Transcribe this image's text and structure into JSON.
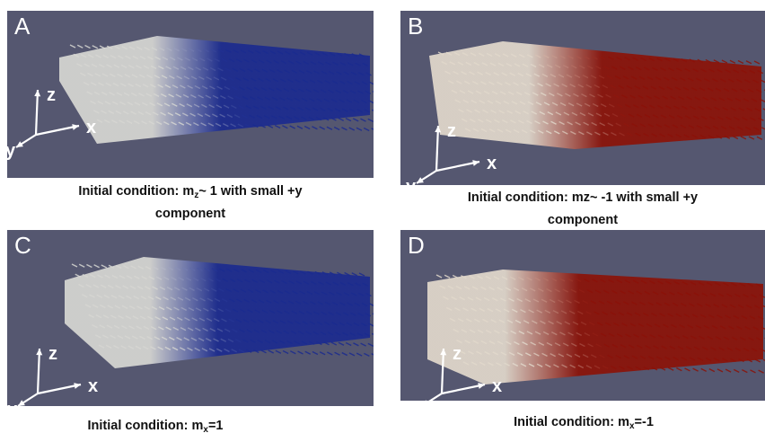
{
  "panels": [
    {
      "id": "A",
      "label": "A",
      "colors": {
        "light": "#d7d7d3",
        "dark": "#1b2b8f"
      },
      "axes": {
        "x": "x",
        "y": "y",
        "z": "z"
      },
      "caption": {
        "prefix": "Initial condition: m",
        "sub": "z",
        "suffix": "~ 1 with small +y",
        "line2": "component"
      }
    },
    {
      "id": "B",
      "label": "B",
      "colors": {
        "light": "#e2d9cc",
        "dark": "#8b1208"
      },
      "axes": {
        "x": "x",
        "y": "y",
        "z": "z"
      },
      "caption": {
        "prefix": "Initial condition: mz~ -1 with small +y",
        "sub": "",
        "suffix": "",
        "line2": "component"
      }
    },
    {
      "id": "C",
      "label": "C",
      "colors": {
        "light": "#d7d7d3",
        "dark": "#1b2b8f"
      },
      "axes": {
        "x": "x",
        "y": "y",
        "z": "z"
      },
      "caption": {
        "prefix": "Initial condition: m",
        "sub": "x",
        "suffix": "=1",
        "line2": ""
      }
    },
    {
      "id": "D",
      "label": "D",
      "colors": {
        "light": "#e2d9cc",
        "dark": "#8b1208"
      },
      "axes": {
        "x": "x",
        "y": "y",
        "z": "z"
      },
      "caption": {
        "prefix": "Initial condition: m",
        "sub": "x",
        "suffix": "=-1",
        "line2": ""
      }
    }
  ]
}
